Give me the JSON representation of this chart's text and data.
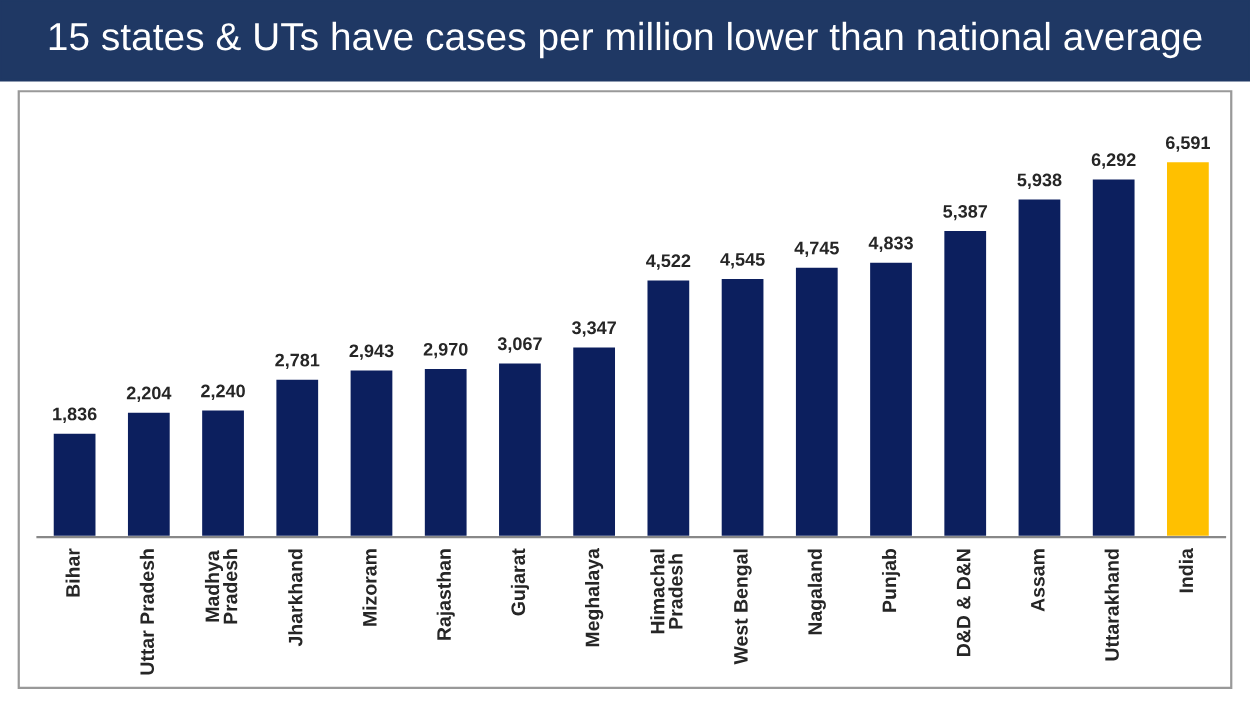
{
  "chart_data": {
    "type": "bar",
    "title": "15 states & UTs have cases per million lower than national average",
    "categories": [
      "Bihar",
      "Uttar Pradesh",
      "Madhya Pradesh",
      "Jharkhand",
      "Mizoram",
      "Rajasthan",
      "Gujarat",
      "Meghalaya",
      "Himachal Pradesh",
      "West Bengal",
      "Nagaland",
      "Punjab",
      "D&D & D&N",
      "Assam",
      "Uttarakhand",
      "India"
    ],
    "values": [
      1836,
      2204,
      2240,
      2781,
      2943,
      2970,
      3067,
      3347,
      4522,
      4545,
      4745,
      4833,
      5387,
      5938,
      6292,
      6591
    ],
    "value_labels": [
      "1,836",
      "2,204",
      "2,240",
      "2,781",
      "2,943",
      "2,970",
      "3,067",
      "3,347",
      "4,522",
      "4,545",
      "4,745",
      "4,833",
      "5,387",
      "5,938",
      "6,292",
      "6,591"
    ],
    "colors": [
      "#0c1f5e",
      "#0c1f5e",
      "#0c1f5e",
      "#0c1f5e",
      "#0c1f5e",
      "#0c1f5e",
      "#0c1f5e",
      "#0c1f5e",
      "#0c1f5e",
      "#0c1f5e",
      "#0c1f5e",
      "#0c1f5e",
      "#0c1f5e",
      "#0c1f5e",
      "#0c1f5e",
      "#ffc000"
    ],
    "grid": false,
    "legend": false
  }
}
